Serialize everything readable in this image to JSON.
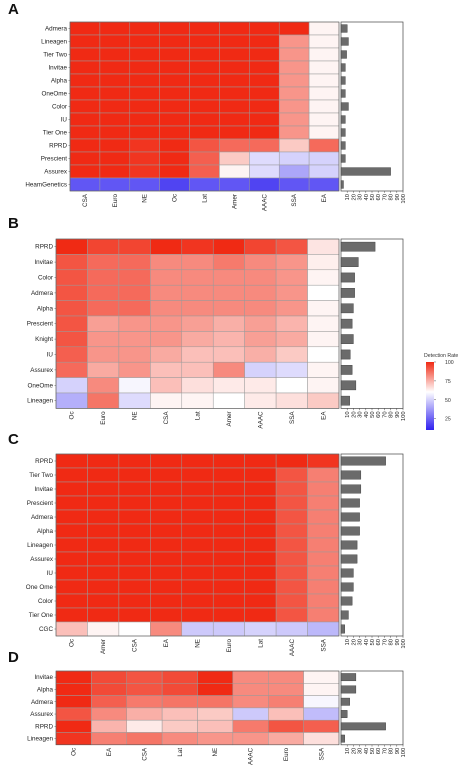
{
  "colors": {
    "high": "#f02a14",
    "mid": "#ffffff",
    "low": "#2f20f0",
    "bar_fill": "#6b6b6b",
    "cell_border": "#9a9a9a"
  },
  "legend": {
    "title": "Detection Rate",
    "ticks": [
      "100",
      "75",
      "50",
      "25"
    ],
    "tick_values": [
      100,
      75,
      50,
      25
    ],
    "range": [
      10,
      100
    ],
    "midpoint": 60
  },
  "chart_data": [
    {
      "type": "heatmap",
      "panel_label": "A",
      "rows": [
        "Admera",
        "Lineagen",
        "Tier Two",
        "Invitae",
        "Alpha",
        "OneOme",
        "Color",
        "IU",
        "Tier One",
        "RPRD",
        "Prescient",
        "Assurex",
        "HeamGenetics"
      ],
      "columns": [
        "CSA",
        "Euro",
        "NE",
        "Oc",
        "Lat",
        "Amer",
        "AAAC",
        "SSA",
        "EA"
      ],
      "values": [
        [
          100,
          100,
          100,
          100,
          100,
          100,
          100,
          100,
          62
        ],
        [
          100,
          100,
          100,
          100,
          100,
          100,
          100,
          80,
          62
        ],
        [
          100,
          100,
          100,
          100,
          100,
          100,
          100,
          80,
          62
        ],
        [
          100,
          100,
          100,
          100,
          100,
          100,
          100,
          80,
          62
        ],
        [
          100,
          100,
          100,
          100,
          100,
          100,
          100,
          80,
          62
        ],
        [
          100,
          100,
          100,
          100,
          100,
          100,
          100,
          80,
          62
        ],
        [
          100,
          100,
          100,
          100,
          100,
          100,
          100,
          80,
          62
        ],
        [
          100,
          100,
          100,
          100,
          100,
          100,
          100,
          80,
          62
        ],
        [
          100,
          100,
          100,
          100,
          100,
          100,
          100,
          80,
          62
        ],
        [
          100,
          100,
          98,
          100,
          92,
          88,
          88,
          70,
          88
        ],
        [
          100,
          100,
          98,
          100,
          90,
          70,
          52,
          50,
          50
        ],
        [
          100,
          100,
          98,
          100,
          90,
          62,
          52,
          40,
          50
        ],
        [
          22,
          22,
          22,
          18,
          22,
          22,
          18,
          22,
          22
        ]
      ],
      "bar_values": [
        10,
        12,
        9,
        7,
        7,
        7,
        12,
        7,
        7,
        7,
        7,
        80,
        4
      ],
      "bar_ticks": [
        "10",
        "20",
        "30",
        "40",
        "50",
        "60",
        "70",
        "80",
        "90",
        "100"
      ],
      "bar_range": [
        0,
        100
      ]
    },
    {
      "type": "heatmap",
      "panel_label": "B",
      "rows": [
        "RPRD",
        "Invitae",
        "Color",
        "Admera",
        "Alpha",
        "Prescient",
        "Knight",
        "IU",
        "Assurex",
        "OneOme",
        "Lineagen"
      ],
      "columns": [
        "Oc",
        "Euro",
        "NE",
        "CSA",
        "Lat",
        "Amer",
        "AAAC",
        "SSA",
        "EA"
      ],
      "values": [
        [
          100,
          95,
          95,
          100,
          98,
          100,
          95,
          92,
          65
        ],
        [
          92,
          88,
          88,
          82,
          82,
          85,
          82,
          80,
          63
        ],
        [
          92,
          88,
          88,
          82,
          82,
          82,
          82,
          80,
          62
        ],
        [
          92,
          88,
          88,
          82,
          82,
          82,
          82,
          80,
          60
        ],
        [
          92,
          88,
          88,
          82,
          82,
          82,
          82,
          80,
          62
        ],
        [
          92,
          78,
          80,
          80,
          78,
          75,
          78,
          74,
          62
        ],
        [
          92,
          80,
          80,
          80,
          76,
          74,
          78,
          76,
          62
        ],
        [
          90,
          80,
          80,
          76,
          72,
          72,
          75,
          70,
          60
        ],
        [
          88,
          76,
          80,
          72,
          72,
          82,
          50,
          52,
          62
        ],
        [
          50,
          82,
          58,
          72,
          66,
          64,
          64,
          60,
          62
        ],
        [
          42,
          86,
          52,
          62,
          62,
          60,
          64,
          66,
          70
        ]
      ],
      "bar_values": [
        55,
        28,
        22,
        22,
        20,
        18,
        20,
        15,
        18,
        24,
        14
      ],
      "bar_ticks": [
        "10",
        "20",
        "30",
        "40",
        "50",
        "60",
        "70",
        "80",
        "90",
        "100"
      ],
      "bar_range": [
        0,
        100
      ]
    },
    {
      "type": "heatmap",
      "panel_label": "C",
      "rows": [
        "RPRD",
        "Tier Two",
        "Invitae",
        "Prescient",
        "Admera",
        "Alpha",
        "Lineagen",
        "Assurex",
        "IU",
        "One Ome",
        "Color",
        "Tier One",
        "CGC"
      ],
      "columns": [
        "Oc",
        "Amer",
        "CSA",
        "EA",
        "NE",
        "Euro",
        "Lat",
        "AAAC",
        "SSA"
      ],
      "values": [
        [
          100,
          100,
          100,
          100,
          100,
          100,
          100,
          100,
          98
        ],
        [
          100,
          100,
          100,
          100,
          100,
          100,
          100,
          92,
          84
        ],
        [
          100,
          100,
          100,
          100,
          100,
          100,
          100,
          92,
          84
        ],
        [
          100,
          100,
          100,
          100,
          100,
          100,
          100,
          92,
          84
        ],
        [
          100,
          100,
          100,
          100,
          100,
          100,
          100,
          92,
          84
        ],
        [
          100,
          100,
          100,
          100,
          100,
          100,
          100,
          92,
          84
        ],
        [
          100,
          100,
          100,
          100,
          100,
          100,
          100,
          92,
          84
        ],
        [
          100,
          100,
          100,
          100,
          100,
          100,
          100,
          92,
          84
        ],
        [
          100,
          100,
          100,
          100,
          100,
          100,
          100,
          92,
          84
        ],
        [
          100,
          100,
          100,
          100,
          100,
          100,
          100,
          92,
          84
        ],
        [
          100,
          100,
          100,
          100,
          100,
          100,
          100,
          92,
          84
        ],
        [
          100,
          100,
          100,
          100,
          100,
          100,
          100,
          92,
          84
        ],
        [
          72,
          62,
          60,
          82,
          48,
          48,
          50,
          48,
          44
        ]
      ],
      "bar_values": [
        72,
        32,
        32,
        30,
        30,
        30,
        26,
        26,
        20,
        20,
        18,
        12,
        6
      ],
      "bar_ticks": [
        "10",
        "20",
        "30",
        "40",
        "50",
        "60",
        "70",
        "80",
        "90",
        "100"
      ],
      "bar_range": [
        0,
        100
      ]
    },
    {
      "type": "heatmap",
      "panel_label": "D",
      "rows": [
        "Invitae",
        "Alpha",
        "Admera",
        "Assurex",
        "RPRD",
        "Lineagen"
      ],
      "columns": [
        "Oc",
        "EA",
        "CSA",
        "Lat",
        "NE",
        "AAAC",
        "Euro",
        "SSA"
      ],
      "values": [
        [
          100,
          94,
          92,
          94,
          100,
          82,
          82,
          62
        ],
        [
          100,
          94,
          92,
          94,
          100,
          82,
          82,
          62
        ],
        [
          100,
          90,
          85,
          86,
          86,
          82,
          84,
          58
        ],
        [
          92,
          82,
          75,
          72,
          70,
          48,
          72,
          45
        ],
        [
          100,
          74,
          64,
          70,
          72,
          85,
          92,
          90
        ],
        [
          98,
          84,
          86,
          82,
          80,
          80,
          76,
          66
        ]
      ],
      "bar_values": [
        24,
        24,
        14,
        10,
        72,
        6
      ],
      "bar_ticks": [
        "10",
        "20",
        "30",
        "40",
        "50",
        "60",
        "70",
        "80",
        "90",
        "100"
      ],
      "bar_range": [
        0,
        100
      ]
    }
  ]
}
